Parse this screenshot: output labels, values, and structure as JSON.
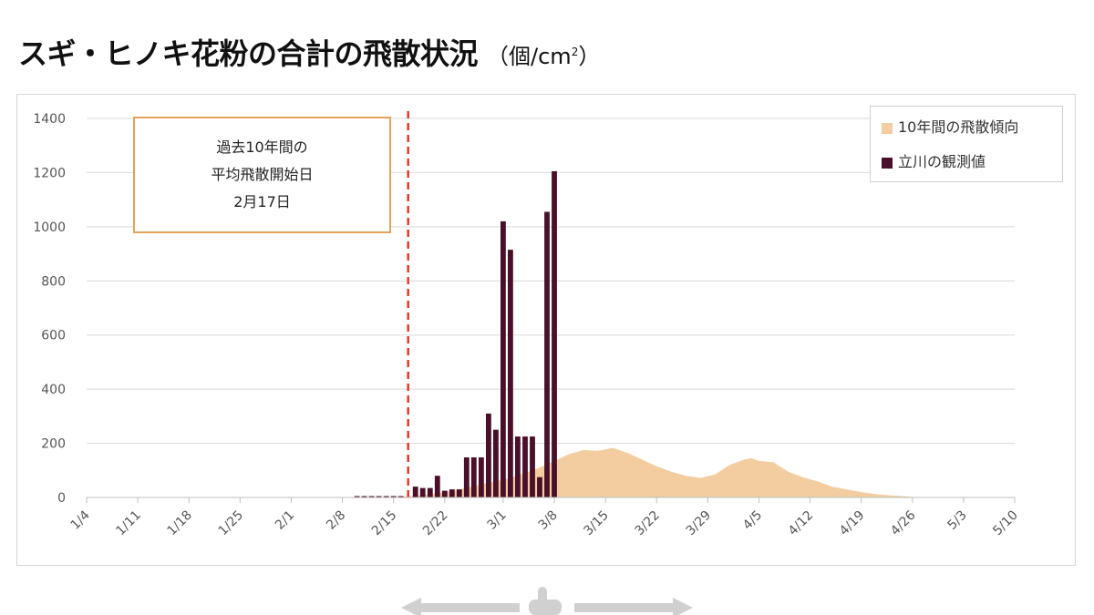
{
  "page": {
    "title": "スギ・ヒノキ花粉の合計の飛散状況",
    "unit_prefix": "（個/cm",
    "unit_sup": "2",
    "unit_suffix": "）"
  },
  "callout": {
    "line1": "過去10年間の",
    "line2": "平均飛散開始日",
    "line3": "2月17日"
  },
  "legend": {
    "items": [
      {
        "label": "10年間の飛散傾向",
        "color": "#f3cc9f"
      },
      {
        "label": "立川の観測値",
        "color": "#4a0f2a"
      }
    ],
    "placement": "top-right"
  },
  "colors": {
    "marker_line": "#e23a2e",
    "grid": "#d9d9d9",
    "axis_text": "#555555"
  },
  "chart_data": {
    "type": "bar",
    "x_start": "1/4",
    "x_end": "5/10",
    "xticks": [
      "1/4",
      "1/11",
      "1/18",
      "1/25",
      "2/1",
      "2/8",
      "2/15",
      "2/22",
      "3/1",
      "3/8",
      "3/15",
      "3/22",
      "3/29",
      "4/5",
      "4/12",
      "4/19",
      "4/26",
      "5/3",
      "5/10"
    ],
    "yticks": [
      0,
      200,
      400,
      600,
      800,
      1000,
      1200,
      1400
    ],
    "ylim": [
      0,
      1400
    ],
    "grid": true,
    "marker": {
      "date": "2/17"
    },
    "series": [
      {
        "name": "10年間の飛散傾向",
        "kind": "area",
        "points": [
          [
            "2/8",
            0
          ],
          [
            "2/15",
            2
          ],
          [
            "2/18",
            6
          ],
          [
            "2/20",
            12
          ],
          [
            "2/22",
            20
          ],
          [
            "2/24",
            30
          ],
          [
            "2/26",
            42
          ],
          [
            "2/28",
            55
          ],
          [
            "3/2",
            72
          ],
          [
            "3/4",
            90
          ],
          [
            "3/6",
            110
          ],
          [
            "3/8",
            135
          ],
          [
            "3/10",
            160
          ],
          [
            "3/12",
            175
          ],
          [
            "3/14",
            172
          ],
          [
            "3/16",
            183
          ],
          [
            "3/18",
            165
          ],
          [
            "3/20",
            140
          ],
          [
            "3/22",
            115
          ],
          [
            "3/24",
            95
          ],
          [
            "3/26",
            80
          ],
          [
            "3/28",
            72
          ],
          [
            "3/30",
            85
          ],
          [
            "4/1",
            120
          ],
          [
            "4/3",
            140
          ],
          [
            "4/4",
            145
          ],
          [
            "4/5",
            135
          ],
          [
            "4/7",
            130
          ],
          [
            "4/9",
            95
          ],
          [
            "4/11",
            75
          ],
          [
            "4/13",
            60
          ],
          [
            "4/15",
            40
          ],
          [
            "4/17",
            30
          ],
          [
            "4/19",
            20
          ],
          [
            "4/21",
            12
          ],
          [
            "4/23",
            8
          ],
          [
            "4/25",
            4
          ],
          [
            "4/27",
            0
          ]
        ]
      },
      {
        "name": "立川の観測値",
        "kind": "bar",
        "points": [
          [
            "2/10",
            5
          ],
          [
            "2/11",
            5
          ],
          [
            "2/12",
            5
          ],
          [
            "2/13",
            5
          ],
          [
            "2/14",
            5
          ],
          [
            "2/15",
            5
          ],
          [
            "2/16",
            5
          ],
          [
            "2/18",
            40
          ],
          [
            "2/19",
            35
          ],
          [
            "2/20",
            35
          ],
          [
            "2/21",
            80
          ],
          [
            "2/22",
            25
          ],
          [
            "2/23",
            30
          ],
          [
            "2/24",
            30
          ],
          [
            "2/25",
            148
          ],
          [
            "2/26",
            148
          ],
          [
            "2/27",
            148
          ],
          [
            "2/28",
            310
          ],
          [
            "2/29",
            250
          ],
          [
            "3/1",
            1020
          ],
          [
            "3/2",
            915
          ],
          [
            "3/3",
            225
          ],
          [
            "3/4",
            225
          ],
          [
            "3/5",
            225
          ],
          [
            "3/6",
            75
          ],
          [
            "3/7",
            1055
          ],
          [
            "3/8",
            1205
          ]
        ]
      }
    ]
  }
}
